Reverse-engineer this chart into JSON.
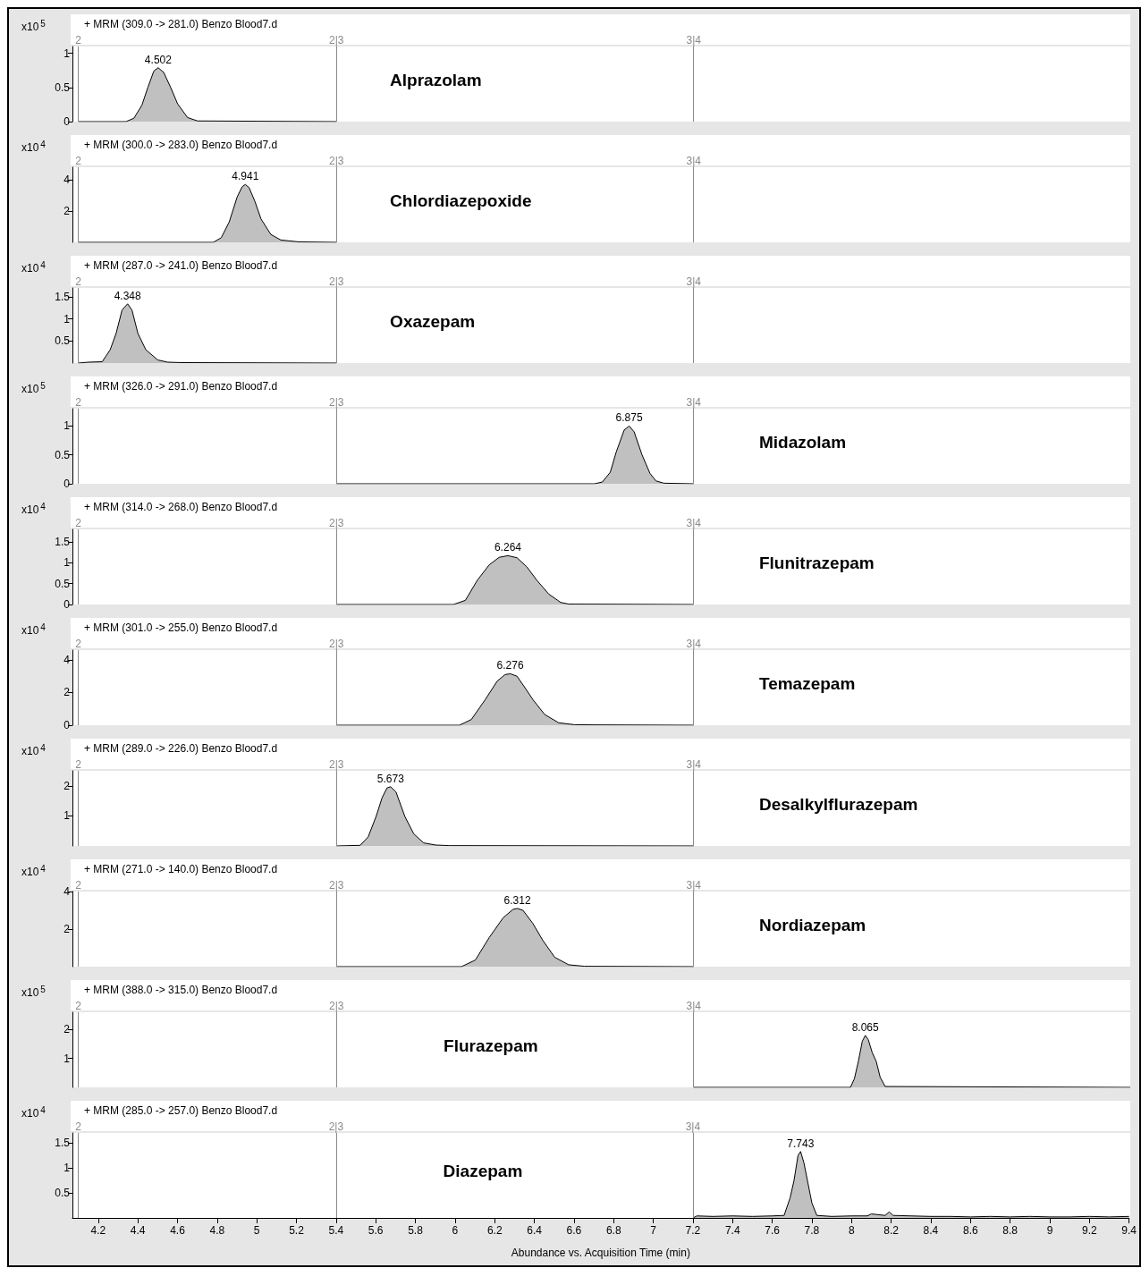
{
  "chart_data": [
    {
      "type": "area",
      "title": "+ MRM (309.0 -> 281.0) Benzo Blood7.d",
      "ylabel": "x10$^{5}$",
      "color": "#c0c0c0",
      "xlim": [
        4.07,
        9.4
      ],
      "xticks": [
        4.2,
        4.4,
        4.6,
        4.8,
        5,
        5.2,
        5.4,
        5.6,
        5.8,
        6,
        6.2,
        6.4,
        6.6,
        6.8,
        7,
        7.2,
        7.4,
        7.6,
        7.8,
        8,
        8.2,
        8.4,
        8.6,
        8.8,
        9,
        9.2,
        9.4
      ],
      "ylim": [
        0,
        1.1
      ],
      "yticks": [
        0,
        0.5,
        1
      ],
      "tick_labels": "y",
      "x": [
        4.1,
        4.34,
        4.38,
        4.42,
        4.45,
        4.48,
        4.502,
        4.53,
        4.565,
        4.6,
        4.65,
        4.7,
        5.4
      ],
      "values": [
        0,
        0,
        0.05,
        0.24,
        0.5,
        0.74,
        0.79,
        0.72,
        0.5,
        0.26,
        0.06,
        0.01,
        0
      ],
      "annotations": [
        {
          "text": "4.502",
          "x": 4.502,
          "y": 0.79
        },
        "Alprazolam",
        "2",
        "2|3",
        "3|4"
      ],
      "ref_lines": [
        {
          "axis": "x",
          "value": 4.1
        },
        {
          "axis": "x",
          "value": 5.4
        },
        {
          "axis": "x",
          "value": 7.2
        }
      ]
    },
    {
      "type": "area",
      "title": "+ MRM (300.0 -> 283.0) Benzo Blood7.d",
      "ylabel": "x10$^{4}$",
      "color": "#c0c0c0",
      "xlim": [
        4.07,
        9.4
      ],
      "xticks": [
        4.2,
        4.4,
        4.6,
        4.8,
        5,
        5.2,
        5.4,
        5.6,
        5.8,
        6,
        6.2,
        6.4,
        6.6,
        6.8,
        7,
        7.2,
        7.4,
        7.6,
        7.8,
        8,
        8.2,
        8.4,
        8.6,
        8.8,
        9,
        9.2,
        9.4
      ],
      "ylim": [
        0,
        4.8
      ],
      "yticks": [
        2,
        4
      ],
      "tick_labels": "y",
      "x": [
        4.1,
        4.78,
        4.82,
        4.86,
        4.9,
        4.925,
        4.941,
        4.96,
        4.99,
        5.02,
        5.07,
        5.12,
        5.21,
        5.4
      ],
      "values": [
        0,
        0,
        0.3,
        1.3,
        2.9,
        3.55,
        3.7,
        3.5,
        2.6,
        1.5,
        0.5,
        0.15,
        0.03,
        0
      ],
      "annotations": [
        {
          "text": "4.941",
          "x": 4.941,
          "y": 3.7
        },
        "Chlordiazepoxide",
        "2",
        "2|3",
        "3|4"
      ],
      "ref_lines": [
        {
          "axis": "x",
          "value": 4.1
        },
        {
          "axis": "x",
          "value": 5.4
        },
        {
          "axis": "x",
          "value": 7.2
        }
      ]
    },
    {
      "type": "area",
      "title": "+ MRM (287.0 -> 241.0) Benzo Blood7.d",
      "ylabel": "x10$^{4}$",
      "color": "#c0c0c0",
      "xlim": [
        4.07,
        9.4
      ],
      "xticks": [
        4.2,
        4.4,
        4.6,
        4.8,
        5,
        5.2,
        5.4,
        5.6,
        5.8,
        6,
        6.2,
        6.4,
        6.6,
        6.8,
        7,
        7.2,
        7.4,
        7.6,
        7.8,
        8,
        8.2,
        8.4,
        8.6,
        8.8,
        9,
        9.2,
        9.4
      ],
      "ylim": [
        0,
        1.7
      ],
      "yticks": [
        0.5,
        1,
        1.5
      ],
      "tick_labels": "y",
      "x": [
        4.1,
        4.15,
        4.22,
        4.26,
        4.29,
        4.32,
        4.348,
        4.37,
        4.4,
        4.44,
        4.5,
        4.55,
        4.62,
        5.4
      ],
      "values": [
        0,
        0.02,
        0.03,
        0.3,
        0.67,
        1.2,
        1.34,
        1.2,
        0.67,
        0.3,
        0.07,
        0.02,
        0.01,
        0
      ],
      "annotations": [
        {
          "text": "4.348",
          "x": 4.348,
          "y": 1.34
        },
        "Oxazepam",
        "2",
        "2|3",
        "3|4"
      ],
      "ref_lines": [
        {
          "axis": "x",
          "value": 4.1
        },
        {
          "axis": "x",
          "value": 5.4
        },
        {
          "axis": "x",
          "value": 7.2
        }
      ]
    },
    {
      "type": "area",
      "title": "+ MRM (326.0 -> 291.0) Benzo Blood7.d",
      "ylabel": "x10$^{5}$",
      "color": "#c0c0c0",
      "xlim": [
        4.07,
        9.4
      ],
      "xticks": [
        4.2,
        4.4,
        4.6,
        4.8,
        5,
        5.2,
        5.4,
        5.6,
        5.8,
        6,
        6.2,
        6.4,
        6.6,
        6.8,
        7,
        7.2,
        7.4,
        7.6,
        7.8,
        8,
        8.2,
        8.4,
        8.6,
        8.8,
        9,
        9.2,
        9.4
      ],
      "ylim": [
        0,
        1.3
      ],
      "yticks": [
        0,
        0.5,
        1
      ],
      "tick_labels": "y",
      "x": [
        5.4,
        6.7,
        6.74,
        6.78,
        6.81,
        6.85,
        6.875,
        6.9,
        6.94,
        6.98,
        7.01,
        7.05,
        7.2
      ],
      "values": [
        0,
        0,
        0.03,
        0.2,
        0.55,
        0.93,
        1.0,
        0.9,
        0.5,
        0.18,
        0.05,
        0.01,
        0
      ],
      "annotations": [
        {
          "text": "6.875",
          "x": 6.875,
          "y": 1.0
        },
        "Midazolam",
        "2",
        "2|3",
        "3|4"
      ],
      "ref_lines": [
        {
          "axis": "x",
          "value": 4.1
        },
        {
          "axis": "x",
          "value": 5.4
        },
        {
          "axis": "x",
          "value": 7.2
        }
      ]
    },
    {
      "type": "area",
      "title": "+ MRM (314.0 -> 268.0) Benzo Blood7.d",
      "ylabel": "x10$^{4}$",
      "color": "#c0c0c0",
      "xlim": [
        4.07,
        9.4
      ],
      "xticks": [
        4.2,
        4.4,
        4.6,
        4.8,
        5,
        5.2,
        5.4,
        5.6,
        5.8,
        6,
        6.2,
        6.4,
        6.6,
        6.8,
        7,
        7.2,
        7.4,
        7.6,
        7.8,
        8,
        8.2,
        8.4,
        8.6,
        8.8,
        9,
        9.2,
        9.4
      ],
      "ylim": [
        0,
        1.8
      ],
      "yticks": [
        0,
        0.5,
        1,
        1.5
      ],
      "tick_labels": "y",
      "x": [
        5.4,
        5.99,
        6.05,
        6.11,
        6.17,
        6.22,
        6.264,
        6.31,
        6.36,
        6.41,
        6.47,
        6.53,
        6.57,
        7.2
      ],
      "values": [
        0,
        0,
        0.1,
        0.58,
        0.95,
        1.13,
        1.17,
        1.12,
        0.9,
        0.58,
        0.25,
        0.05,
        0.01,
        0
      ],
      "annotations": [
        {
          "text": "6.264",
          "x": 6.264,
          "y": 1.17
        },
        "Flunitrazepam",
        "2",
        "2|3",
        "3|4"
      ],
      "ref_lines": [
        {
          "axis": "x",
          "value": 4.1
        },
        {
          "axis": "x",
          "value": 5.4
        },
        {
          "axis": "x",
          "value": 7.2
        }
      ]
    },
    {
      "type": "area",
      "title": "+ MRM (301.0 -> 255.0) Benzo Blood7.d",
      "ylabel": "x10$^{4}$",
      "color": "#c0c0c0",
      "xlim": [
        4.07,
        9.4
      ],
      "xticks": [
        4.2,
        4.4,
        4.6,
        4.8,
        5,
        5.2,
        5.4,
        5.6,
        5.8,
        6,
        6.2,
        6.4,
        6.6,
        6.8,
        7,
        7.2,
        7.4,
        7.6,
        7.8,
        8,
        8.2,
        8.4,
        8.6,
        8.8,
        9,
        9.2,
        9.4
      ],
      "ylim": [
        0,
        4.6
      ],
      "yticks": [
        0,
        2,
        4
      ],
      "tick_labels": "y",
      "x": [
        5.4,
        6.02,
        6.08,
        6.15,
        6.21,
        6.25,
        6.276,
        6.31,
        6.35,
        6.39,
        6.45,
        6.52,
        6.6,
        6.71,
        7.2
      ],
      "values": [
        0,
        0,
        0.35,
        1.57,
        2.7,
        3.1,
        3.15,
        3.0,
        2.3,
        1.57,
        0.65,
        0.15,
        0.03,
        0.02,
        0
      ],
      "annotations": [
        {
          "text": "6.276",
          "x": 6.276,
          "y": 3.15
        },
        "Temazepam",
        "2",
        "2|3",
        "3|4"
      ],
      "ref_lines": [
        {
          "axis": "x",
          "value": 4.1
        },
        {
          "axis": "x",
          "value": 5.4
        },
        {
          "axis": "x",
          "value": 7.2
        }
      ]
    },
    {
      "type": "area",
      "title": "+ MRM (289.0 -> 226.0) Benzo Blood7.d",
      "ylabel": "x10$^{4}$",
      "color": "#c0c0c0",
      "xlim": [
        4.07,
        9.4
      ],
      "xticks": [
        4.2,
        4.4,
        4.6,
        4.8,
        5,
        5.2,
        5.4,
        5.6,
        5.8,
        6,
        6.2,
        6.4,
        6.6,
        6.8,
        7,
        7.2,
        7.4,
        7.6,
        7.8,
        8,
        8.2,
        8.4,
        8.6,
        8.8,
        9,
        9.2,
        9.4
      ],
      "ylim": [
        0,
        2.5
      ],
      "yticks": [
        1,
        2
      ],
      "tick_labels": "y",
      "x": [
        5.4,
        5.52,
        5.56,
        5.6,
        5.63,
        5.655,
        5.673,
        5.7,
        5.745,
        5.79,
        5.84,
        5.9,
        5.97,
        7.2
      ],
      "values": [
        0,
        0.02,
        0.3,
        0.98,
        1.6,
        1.93,
        1.97,
        1.8,
        0.98,
        0.4,
        0.1,
        0.03,
        0.01,
        0
      ],
      "annotations": [
        {
          "text": "5.673",
          "x": 5.673,
          "y": 1.97
        },
        "Desalkylflurazepam",
        "2",
        "2|3",
        "3|4"
      ],
      "ref_lines": [
        {
          "axis": "x",
          "value": 4.1
        },
        {
          "axis": "x",
          "value": 5.4
        },
        {
          "axis": "x",
          "value": 7.2
        }
      ]
    },
    {
      "type": "area",
      "title": "+ MRM (271.0 -> 140.0) Benzo Blood7.d",
      "ylabel": "x10$^{4}$",
      "color": "#c0c0c0",
      "xlim": [
        4.07,
        9.4
      ],
      "xticks": [
        4.2,
        4.4,
        4.6,
        4.8,
        5,
        5.2,
        5.4,
        5.6,
        5.8,
        6,
        6.2,
        6.4,
        6.6,
        6.8,
        7,
        7.2,
        7.4,
        7.6,
        7.8,
        8,
        8.2,
        8.4,
        8.6,
        8.8,
        9,
        9.2,
        9.4
      ],
      "ylim": [
        0,
        4
      ],
      "yticks": [
        2,
        4
      ],
      "tick_labels": "y",
      "x": [
        5.4,
        6.03,
        6.1,
        6.17,
        6.24,
        6.29,
        6.312,
        6.34,
        6.39,
        6.44,
        6.5,
        6.57,
        6.65,
        7.2
      ],
      "values": [
        0,
        0,
        0.35,
        1.55,
        2.6,
        3.05,
        3.1,
        3.0,
        2.3,
        1.4,
        0.5,
        0.1,
        0.02,
        0
      ],
      "annotations": [
        {
          "text": "6.312",
          "x": 6.312,
          "y": 3.1
        },
        "Nordiazepam",
        "2",
        "2|3",
        "3|4"
      ],
      "ref_lines": [
        {
          "axis": "x",
          "value": 4.1
        },
        {
          "axis": "x",
          "value": 5.4
        },
        {
          "axis": "x",
          "value": 7.2
        }
      ]
    },
    {
      "type": "area",
      "title": "+ MRM (388.0 -> 315.0) Benzo Blood7.d",
      "ylabel": "x10$^{5}$",
      "color": "#c0c0c0",
      "xlim": [
        4.07,
        9.4
      ],
      "xticks": [
        4.2,
        4.4,
        4.6,
        4.8,
        5,
        5.2,
        5.4,
        5.6,
        5.8,
        6,
        6.2,
        6.4,
        6.6,
        6.8,
        7,
        7.2,
        7.4,
        7.6,
        7.8,
        8,
        8.2,
        8.4,
        8.6,
        8.8,
        9,
        9.2,
        9.4
      ],
      "ylim": [
        0,
        2.6
      ],
      "yticks": [
        1,
        2
      ],
      "tick_labels": "y",
      "x": [
        7.2,
        7.99,
        8.01,
        8.03,
        8.05,
        8.065,
        8.08,
        8.1,
        8.12,
        8.14,
        8.165,
        9.4
      ],
      "values": [
        0,
        0,
        0.3,
        0.9,
        1.6,
        1.8,
        1.65,
        1.2,
        0.9,
        0.35,
        0.03,
        0
      ],
      "annotations": [
        {
          "text": "8.065",
          "x": 8.065,
          "y": 1.8
        },
        "Flurazepam",
        "2",
        "2|3",
        "3|4"
      ],
      "ref_lines": [
        {
          "axis": "x",
          "value": 4.1
        },
        {
          "axis": "x",
          "value": 5.4
        },
        {
          "axis": "x",
          "value": 7.2
        }
      ]
    },
    {
      "type": "area",
      "title": "+ MRM (285.0 -> 257.0) Benzo Blood7.d",
      "ylabel": "x10$^{4}$",
      "xlabel": "Abundance vs. Acquisition Time (min)",
      "color": "#c0c0c0",
      "xlim": [
        4.07,
        9.4
      ],
      "ylim": [
        0,
        1.7
      ],
      "yticks": [
        0.5,
        1,
        1.5
      ],
      "xticks": [
        4.2,
        4.4,
        4.6,
        4.8,
        5,
        5.2,
        5.4,
        5.6,
        5.8,
        6,
        6.2,
        6.4,
        6.6,
        6.8,
        7,
        7.2,
        7.4,
        7.6,
        7.8,
        8,
        8.2,
        8.4,
        8.6,
        8.8,
        9,
        9.2,
        9.4
      ],
      "x": [
        7.2,
        7.22,
        7.3,
        7.4,
        7.5,
        7.6,
        7.66,
        7.69,
        7.71,
        7.73,
        7.743,
        7.76,
        7.78,
        7.8,
        7.825,
        7.9,
        8.0,
        8.08,
        8.1,
        8.17,
        8.19,
        8.21,
        8.3,
        8.4,
        8.5,
        8.6,
        8.7,
        8.8,
        8.9,
        9.0,
        9.1,
        9.2,
        9.3,
        9.4
      ],
      "values": [
        0,
        0.04,
        0.03,
        0.04,
        0.03,
        0.04,
        0.05,
        0.4,
        0.75,
        1.25,
        1.33,
        1.1,
        0.7,
        0.3,
        0.05,
        0.03,
        0.04,
        0.04,
        0.08,
        0.05,
        0.12,
        0.05,
        0.04,
        0.03,
        0.03,
        0.02,
        0.03,
        0.02,
        0.03,
        0.02,
        0.02,
        0.03,
        0.02,
        0.03
      ],
      "annotations": [
        {
          "text": "7.743",
          "x": 7.743,
          "y": 1.33
        },
        "Diazepam",
        "2",
        "2|3",
        "3|4"
      ],
      "ref_lines": [
        {
          "axis": "x",
          "value": 4.1
        },
        {
          "axis": "x",
          "value": 5.4
        },
        {
          "axis": "x",
          "value": 7.2
        }
      ]
    }
  ]
}
